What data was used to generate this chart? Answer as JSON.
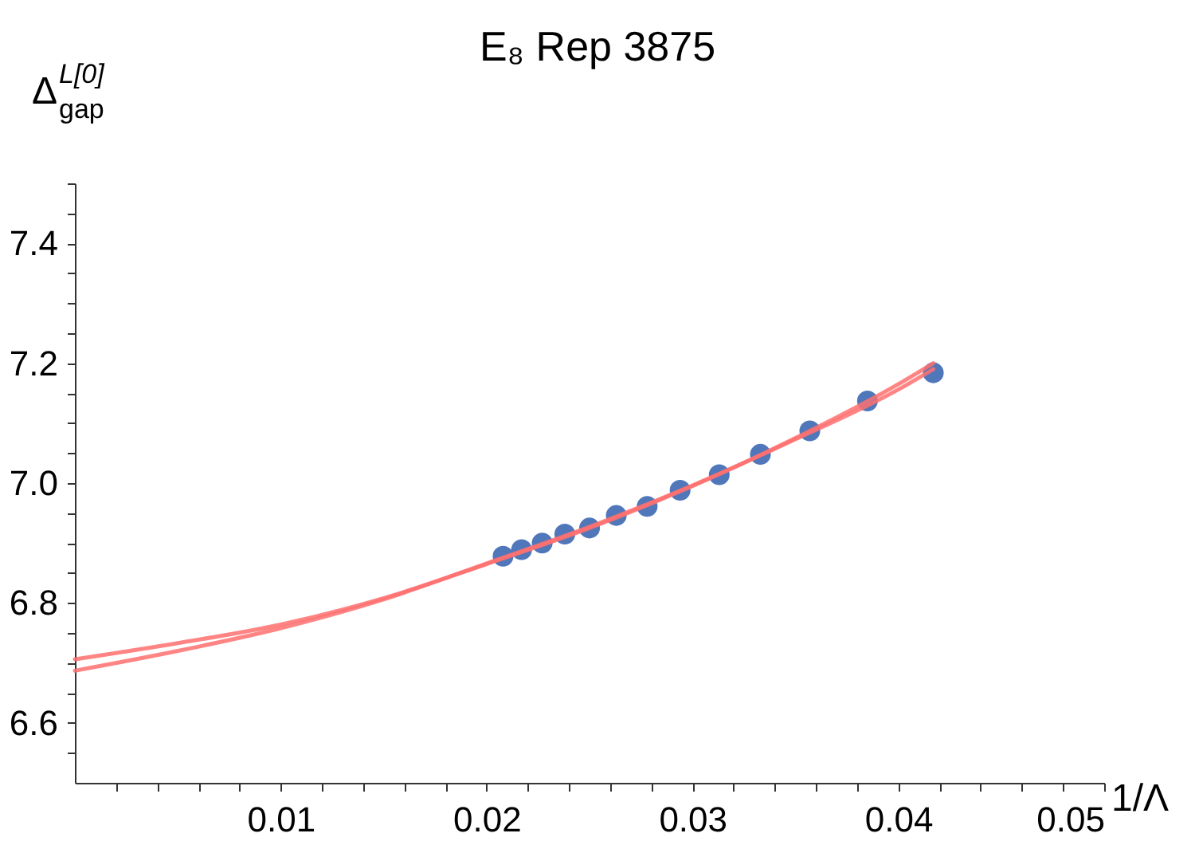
{
  "chart_data": {
    "type": "scatter",
    "title": "E₈ Rep 3875",
    "xlabel": "1/Λ",
    "ylabel": "Δ$^{L[0]}$$_{gap}$",
    "xlim": [
      0,
      0.05
    ],
    "ylim": [
      6.5,
      7.5
    ],
    "xticks": [
      {
        "value": 0.002,
        "label": null
      },
      {
        "value": 0.004,
        "label": null
      },
      {
        "value": 0.006,
        "label": null
      },
      {
        "value": 0.008,
        "label": null
      },
      0.01,
      {
        "value": 0.012,
        "label": null
      },
      {
        "value": 0.014,
        "label": null
      },
      {
        "value": 0.016,
        "label": null
      },
      {
        "value": 0.018,
        "label": null
      },
      0.02,
      {
        "value": 0.022,
        "label": null
      },
      {
        "value": 0.024,
        "label": null
      },
      {
        "value": 0.026,
        "label": null
      },
      {
        "value": 0.028,
        "label": null
      },
      0.03,
      {
        "value": 0.032,
        "label": null
      },
      {
        "value": 0.034,
        "label": null
      },
      {
        "value": 0.036,
        "label": null
      },
      {
        "value": 0.038,
        "label": null
      },
      0.04,
      {
        "value": 0.042,
        "label": null
      },
      {
        "value": 0.044,
        "label": null
      },
      {
        "value": 0.046,
        "label": null
      },
      {
        "value": 0.048,
        "label": null
      },
      0.05
    ],
    "yticks": [
      {
        "value": 6.55,
        "label": null
      },
      {
        "value": 6.6,
        "label": "6.6"
      },
      {
        "value": 6.65,
        "label": null
      },
      {
        "value": 6.7,
        "label": null
      },
      {
        "value": 6.75,
        "label": null
      },
      {
        "value": 6.8,
        "label": "6.8"
      },
      {
        "value": 6.85,
        "label": null
      },
      {
        "value": 6.9,
        "label": null
      },
      {
        "value": 6.95,
        "label": null
      },
      {
        "value": 7.0,
        "label": "7.0"
      },
      {
        "value": 7.05,
        "label": null
      },
      {
        "value": 7.1,
        "label": null
      },
      {
        "value": 7.15,
        "label": null
      },
      {
        "value": 7.2,
        "label": "7.2"
      },
      {
        "value": 7.25,
        "label": null
      },
      {
        "value": 7.3,
        "label": null
      },
      {
        "value": 7.35,
        "label": null
      },
      {
        "value": 7.4,
        "label": "7.4"
      },
      {
        "value": 7.45,
        "label": null
      },
      {
        "value": 7.5,
        "label": null
      }
    ],
    "grid": false,
    "series": [
      {
        "color": "#4f77b9",
        "marker": "circle",
        "x": [
          0.0208,
          0.0217,
          0.0227,
          0.0238,
          0.025,
          0.0263,
          0.0278,
          0.0294,
          0.0313,
          0.0333,
          0.0357,
          0.0385,
          0.0417
        ],
        "values": [
          6.878,
          6.889,
          6.9,
          6.915,
          6.925,
          6.946,
          6.961,
          6.988,
          7.014,
          7.048,
          7.087,
          7.137,
          7.184
        ]
      },
      {
        "type": "line",
        "color": "#ff7070",
        "x": [
          0,
          0.005,
          0.01,
          0.015,
          0.02,
          0.025,
          0.03,
          0.035,
          0.04,
          0.0417
        ],
        "values": [
          6.706,
          6.733,
          6.764,
          6.808,
          6.865,
          6.925,
          6.995,
          7.075,
          7.165,
          7.2
        ]
      },
      {
        "type": "line",
        "color": "#ff7070",
        "x": [
          0,
          0.005,
          0.01,
          0.015,
          0.02,
          0.025,
          0.03,
          0.035,
          0.04,
          0.0417
        ],
        "values": [
          6.687,
          6.72,
          6.758,
          6.806,
          6.866,
          6.927,
          6.996,
          7.073,
          7.156,
          7.19
        ]
      }
    ]
  }
}
